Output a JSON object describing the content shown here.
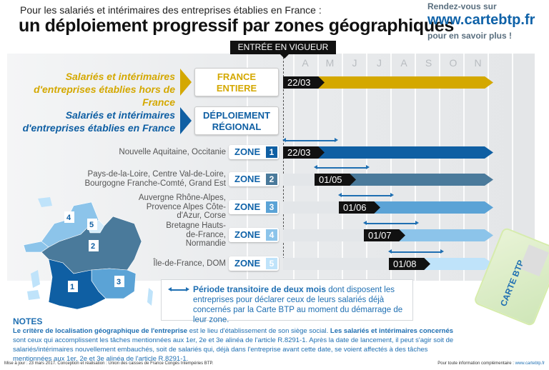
{
  "header": {
    "subtitle": "Pour les salariés et intérimaires des entreprises établies en France :",
    "title": "un déploiement progressif par zones géographiques"
  },
  "cta": {
    "line1": "Rendez-vous sur",
    "url": "www.cartebtp.fr",
    "line3": "pour en savoir plus !"
  },
  "timeline": {
    "entree_label": "ENTRÉE EN VIGUEUR",
    "months": [
      "A",
      "M",
      "J",
      "J",
      "A",
      "S",
      "O",
      "N"
    ]
  },
  "groups": [
    {
      "label_1": "Salariés et intérimaires",
      "label_2": "d'entreprises établies hors de France",
      "box_1": "FRANCE",
      "box_2": "ENTIERE",
      "date": "22/03",
      "color": "#d4a800"
    },
    {
      "label_1": "Salariés et intérimaires",
      "label_2": "d'entreprises établies en France",
      "box_1": "DÉPLOIEMENT",
      "box_2": "RÉGIONAL",
      "color": "#0f5fa3"
    }
  ],
  "zones": [
    {
      "regions": "Nouvelle Aquitaine, Occitanie",
      "label": "ZONE",
      "number": "1",
      "date": "22/03",
      "color": "#0f5fa3"
    },
    {
      "regions": "Pays-de-la-Loire, Centre Val-de-Loire, Bourgogne Franche-Comté, Grand Est",
      "label": "ZONE",
      "number": "2",
      "date": "01/05",
      "color": "#4a7a9b"
    },
    {
      "regions": "Auvergne Rhône-Alpes, Provence Alpes Côte-d'Azur, Corse",
      "label": "ZONE",
      "number": "3",
      "date": "01/06",
      "color": "#5ba3d6"
    },
    {
      "regions": "Bretagne Hauts-de-France, Normandie",
      "label": "ZONE",
      "number": "4",
      "date": "01/07",
      "color": "#8cc4ea"
    },
    {
      "regions": "Île-de-France, DOM",
      "label": "ZONE",
      "number": "5",
      "date": "01/08",
      "color": "#bfe3fa"
    }
  ],
  "legend": {
    "bold": "Période transitoire de deux mois",
    "text": " dont disposent les entreprises pour déclarer ceux de leurs salariés déjà concernés par la Carte BTP au moment du démarrage de leur zone."
  },
  "notes": {
    "heading": "NOTES",
    "b1": "Le critère de localisation géographique de l'entreprise",
    "t1": " est le lieu d'établissement de son siège social. ",
    "b2": "Les salariés et intérimaires concernés",
    "t2": " sont ceux qui accomplissent les tâches mentionnées aux 1er, 2e et 3e alinéa de l'article R.8291-1. Après la date de lancement, il peut s'agir soit de salariés/intérimaires nouvellement embauchés, soit de salariés qui, déjà dans l'entreprise avant cette date, se voient affectés à des tâches mentionnées aux 1er, 2e et 3e alinéa de l'article R.8291-1."
  },
  "footer": {
    "left": "Mise à jour : 23 mars 2017. Conception et réalisation : Union des caisses de France Congés Intempéries BTP.",
    "right": "Pour toute information complémentaire : ",
    "link": "www.cartebtp.fr"
  },
  "card": {
    "logo_text": "CARTE BTP"
  }
}
